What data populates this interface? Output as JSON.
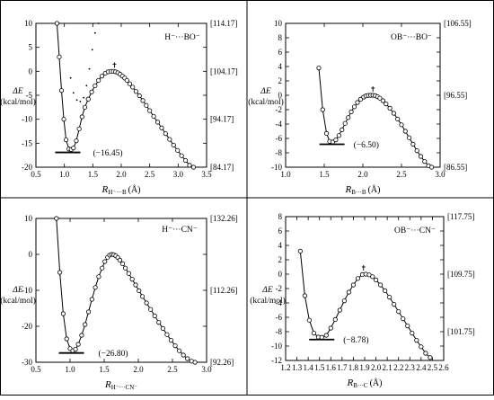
{
  "chart_data": [
    {
      "type": "line",
      "panel_title": "H⁻···BO⁻",
      "ylabel_lines": [
        "ΔE",
        "(kcal/mol)"
      ],
      "xlabel_main": "R",
      "xlabel_sub": "H⁻···B",
      "xlabel_unit": "(Å)",
      "xlim": [
        0.5,
        3.5
      ],
      "ylim": [
        -20,
        10
      ],
      "xticks": [
        0.5,
        1.0,
        1.5,
        2.0,
        2.5,
        3.0,
        3.5
      ],
      "xtick_labels": [
        "0.5",
        "1.0",
        "1.5",
        "2.0",
        "2.5",
        "3.0",
        "3.5"
      ],
      "yticks": [
        -20,
        -15,
        -10,
        -5,
        0,
        5,
        10
      ],
      "ytick_labels": [
        "-20",
        "-15",
        "-10",
        "-5",
        "0",
        "5",
        "10"
      ],
      "right_ticks": [
        10,
        0,
        -10,
        -20
      ],
      "right_tick_labels": [
        "[114.17]",
        "[104.17]",
        "[94.17]",
        "[84.17]"
      ],
      "minimum_label": "(−16.45)",
      "minimum": {
        "x": 1.06,
        "y": -16.45
      },
      "ts_marker": {
        "x": 1.88,
        "y": 0.0
      },
      "x": [
        0.87,
        0.91,
        0.95,
        0.99,
        1.03,
        1.08,
        1.12,
        1.16,
        1.21,
        1.26,
        1.31,
        1.36,
        1.42,
        1.48,
        1.54,
        1.6,
        1.66,
        1.72,
        1.77,
        1.82,
        1.86,
        1.9,
        1.94,
        1.98,
        2.02,
        2.06,
        2.1,
        2.15,
        2.2,
        2.26,
        2.32,
        2.38,
        2.44,
        2.5,
        2.57,
        2.64,
        2.71,
        2.78,
        2.85,
        2.92,
        2.99,
        3.06,
        3.13,
        3.2,
        3.27
      ],
      "y": [
        10.0,
        3.0,
        -4.0,
        -10.0,
        -14.3,
        -16.2,
        -16.3,
        -16.0,
        -14.5,
        -12.0,
        -9.5,
        -7.5,
        -5.8,
        -4.3,
        -3.0,
        -1.9,
        -1.0,
        -0.4,
        -0.1,
        0.0,
        0.0,
        -0.1,
        -0.3,
        -0.6,
        -1.0,
        -1.4,
        -1.9,
        -2.6,
        -3.3,
        -4.2,
        -5.1,
        -6.1,
        -7.1,
        -8.2,
        -9.4,
        -10.6,
        -11.8,
        -13.0,
        -14.2,
        -15.4,
        -16.5,
        -17.6,
        -18.6,
        -19.6,
        -20.0
      ],
      "dotted_x": [
        1.11,
        1.16,
        1.22,
        1.28,
        1.34,
        1.39,
        1.44,
        1.49,
        1.54,
        1.6
      ],
      "dotted_y": [
        -1.4,
        -4.5,
        -6.0,
        -6.3,
        -5.5,
        -3.0,
        0.5,
        4.5,
        8.0,
        10.0
      ]
    },
    {
      "type": "line",
      "panel_title": "OB⁻···BO⁻",
      "ylabel_lines": [
        "ΔE",
        "(kcal/mol)"
      ],
      "xlabel_main": "R",
      "xlabel_sub": "B···B",
      "xlabel_unit": "(Å)",
      "xlim": [
        1.0,
        3.0
      ],
      "ylim": [
        -10,
        10
      ],
      "xticks": [
        1.0,
        1.5,
        2.0,
        2.5,
        3.0
      ],
      "xtick_labels": [
        "1.0",
        "1.5",
        "2.0",
        "2.5",
        "3.0"
      ],
      "yticks": [
        -10,
        -8,
        -6,
        -4,
        -2,
        0,
        2,
        4,
        6,
        8,
        10
      ],
      "ytick_labels": [
        "-10",
        "-8",
        "-6",
        "-4",
        "-2",
        "0",
        "2",
        "4",
        "6",
        "8",
        "10"
      ],
      "right_ticks": [
        10,
        0,
        -10
      ],
      "right_tick_labels": [
        "[106.55]",
        "[96.55]",
        "[86.55]"
      ],
      "minimum_label": "(−6.50)",
      "minimum": {
        "x": 1.6,
        "y": -6.5
      },
      "ts_marker": {
        "x": 2.13,
        "y": 0.0
      },
      "x": [
        1.43,
        1.48,
        1.53,
        1.57,
        1.61,
        1.65,
        1.69,
        1.73,
        1.77,
        1.81,
        1.85,
        1.89,
        1.93,
        1.97,
        2.01,
        2.04,
        2.07,
        2.1,
        2.13,
        2.16,
        2.19,
        2.22,
        2.26,
        2.3,
        2.35,
        2.4,
        2.45,
        2.5,
        2.55,
        2.6,
        2.65,
        2.7,
        2.75,
        2.8,
        2.85,
        2.89
      ],
      "y": [
        3.8,
        -2.0,
        -5.3,
        -6.4,
        -6.5,
        -6.2,
        -5.6,
        -4.8,
        -3.9,
        -3.1,
        -2.3,
        -1.6,
        -1.0,
        -0.55,
        -0.25,
        -0.08,
        -0.02,
        0.0,
        0.0,
        -0.05,
        -0.2,
        -0.4,
        -0.75,
        -1.2,
        -1.8,
        -2.5,
        -3.3,
        -4.1,
        -5.0,
        -5.9,
        -6.8,
        -7.7,
        -8.5,
        -9.2,
        -9.8,
        -10.0
      ]
    },
    {
      "type": "line",
      "panel_title": "H⁻···CN⁻",
      "ylabel_lines": [
        "ΔE",
        "(kcal/mol)"
      ],
      "xlabel_main": "R",
      "xlabel_sub": "H⁻···CN⁻",
      "xlabel_unit": "",
      "xlim": [
        0.5,
        3.0
      ],
      "ylim": [
        -30,
        10
      ],
      "xticks": [
        0.5,
        1.0,
        1.5,
        2.0,
        2.5,
        3.0
      ],
      "xtick_labels": [
        "0.5",
        "1.0",
        "1.5",
        "2.0",
        "2.5",
        "3.0"
      ],
      "yticks": [
        -30,
        -20,
        -10,
        0,
        10
      ],
      "ytick_labels": [
        "-30",
        "-20",
        "-10",
        "0",
        "10"
      ],
      "right_ticks": [
        10,
        -10,
        -30
      ],
      "right_tick_labels": [
        "[132.26]",
        "[112.26]",
        "[92.26]"
      ],
      "minimum_label": "(−26.80)",
      "minimum": {
        "x": 1.02,
        "y": -26.8
      },
      "ts_marker": null,
      "x": [
        0.8,
        0.85,
        0.9,
        0.95,
        1.0,
        1.04,
        1.08,
        1.12,
        1.17,
        1.22,
        1.27,
        1.32,
        1.37,
        1.42,
        1.47,
        1.51,
        1.55,
        1.58,
        1.61,
        1.64,
        1.67,
        1.7,
        1.73,
        1.77,
        1.81,
        1.86,
        1.91,
        1.96,
        2.01,
        2.06,
        2.12,
        2.18,
        2.24,
        2.3,
        2.36,
        2.42,
        2.48,
        2.54,
        2.6,
        2.66,
        2.72,
        2.78,
        2.83
      ],
      "y": [
        10.0,
        -5.0,
        -16.5,
        -23.5,
        -26.2,
        -26.8,
        -26.4,
        -25.0,
        -22.5,
        -19.5,
        -16.0,
        -12.5,
        -9.2,
        -6.2,
        -3.8,
        -2.0,
        -0.8,
        -0.2,
        0.0,
        -0.1,
        -0.4,
        -0.9,
        -1.6,
        -2.6,
        -3.8,
        -5.3,
        -6.9,
        -8.5,
        -10.1,
        -11.7,
        -13.5,
        -15.3,
        -17.1,
        -18.9,
        -20.6,
        -22.3,
        -23.9,
        -25.4,
        -26.8,
        -28.0,
        -29.0,
        -29.7,
        -30.0
      ]
    },
    {
      "type": "line",
      "panel_title": "OB⁻···CN⁻",
      "ylabel_lines": [
        "ΔE",
        "(kcal/mol)"
      ],
      "xlabel_main": "R",
      "xlabel_sub": "B···C",
      "xlabel_unit": "(Å)",
      "xlim": [
        1.2,
        2.6
      ],
      "ylim": [
        -12,
        8
      ],
      "xticks": [
        1.2,
        1.3,
        1.4,
        1.5,
        1.6,
        1.7,
        1.8,
        1.9,
        2.0,
        2.1,
        2.2,
        2.3,
        2.4,
        2.5,
        2.6
      ],
      "xtick_labels": [
        "1.2",
        "1.3",
        "1.4",
        "1.5",
        "1.6",
        "1.7",
        "1.8",
        "1.9",
        "2.0",
        "2.1",
        "2.2",
        "2.3",
        "2.4",
        "2.5",
        "2.6"
      ],
      "yticks": [
        -12,
        -10,
        -8,
        -6,
        -4,
        -2,
        0,
        2,
        4,
        6,
        8
      ],
      "ytick_labels": [
        "-12",
        "-10",
        "-8",
        "-6",
        "-4",
        "-2",
        "0",
        "2",
        "4",
        "6",
        "8"
      ],
      "right_ticks": [
        8,
        0,
        -8
      ],
      "right_tick_labels": [
        "[117.75]",
        "[109.75]",
        "[101.75]"
      ],
      "minimum_label": "(−8.78)",
      "minimum": {
        "x": 1.52,
        "y": -8.78
      },
      "ts_marker": {
        "x": 1.89,
        "y": 0.0
      },
      "x": [
        1.33,
        1.37,
        1.41,
        1.45,
        1.49,
        1.52,
        1.56,
        1.6,
        1.64,
        1.68,
        1.72,
        1.76,
        1.8,
        1.84,
        1.88,
        1.91,
        1.94,
        1.97,
        2.0,
        2.04,
        2.08,
        2.12,
        2.16,
        2.2,
        2.24,
        2.28,
        2.32,
        2.36,
        2.4,
        2.44,
        2.48
      ],
      "y": [
        3.2,
        -3.0,
        -6.4,
        -8.2,
        -8.75,
        -8.78,
        -8.5,
        -7.5,
        -6.3,
        -5.0,
        -3.7,
        -2.5,
        -1.5,
        -0.6,
        -0.05,
        0.0,
        -0.1,
        -0.35,
        -0.8,
        -1.5,
        -2.3,
        -3.2,
        -4.2,
        -5.2,
        -6.2,
        -7.2,
        -8.2,
        -9.2,
        -10.1,
        -11.0,
        -11.6
      ]
    }
  ]
}
